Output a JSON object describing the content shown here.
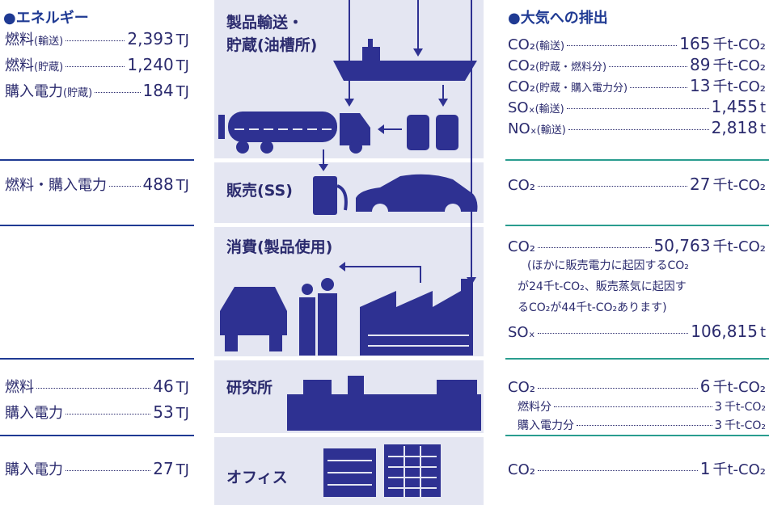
{
  "energy": {
    "title": "●エネルギー"
  },
  "emissions": {
    "title": "●大気への排出"
  },
  "sections": [
    {
      "stage": [
        "製品輸送・",
        "貯蔵(油槽所)"
      ],
      "energy": [
        {
          "label": "燃料",
          "note": "(輸送)",
          "value": "2,393",
          "unit": "TJ"
        },
        {
          "label": "燃料",
          "note": "(貯蔵)",
          "value": "1,240",
          "unit": "TJ"
        },
        {
          "label": "購入電力",
          "note": "(貯蔵)",
          "value": "184",
          "unit": "TJ"
        }
      ],
      "emissions": [
        {
          "label": "CO₂",
          "note": "(輸送)",
          "value": "165",
          "unit": "千t-CO₂"
        },
        {
          "label": "CO₂",
          "note": "(貯蔵・燃料分)",
          "value": "89",
          "unit": "千t-CO₂"
        },
        {
          "label": "CO₂",
          "note": "(貯蔵・購入電力分)",
          "value": "13",
          "unit": "千t-CO₂"
        },
        {
          "label": "SOₓ",
          "note": "(輸送)",
          "value": "1,455",
          "unit": "t"
        },
        {
          "label": "NOₓ",
          "note": "(輸送)",
          "value": "2,818",
          "unit": "t"
        }
      ]
    },
    {
      "stage": [
        "販売(SS)"
      ],
      "energy": [
        {
          "label": "燃料・購入電力",
          "value": "488",
          "unit": "TJ"
        }
      ],
      "emissions": [
        {
          "label": "CO₂",
          "value": "27",
          "unit": "千t-CO₂"
        }
      ]
    },
    {
      "stage": [
        "消費(製品使用)"
      ],
      "energy": [],
      "emissions": [
        {
          "label": "CO₂",
          "value": "50,763",
          "unit": "千t-CO₂"
        },
        {
          "label": "SOₓ",
          "value": "106,815",
          "unit": "t"
        }
      ],
      "memo": [
        "(ほかに販売電力に起因するCO₂",
        "が24千t-CO₂、販売蒸気に起因す",
        "るCO₂が44千t-CO₂あります)"
      ]
    },
    {
      "stage": [
        "研究所"
      ],
      "energy": [
        {
          "label": "燃料",
          "value": "46",
          "unit": "TJ"
        },
        {
          "label": "購入電力",
          "value": "53",
          "unit": "TJ"
        }
      ],
      "emissions": [
        {
          "label": "CO₂",
          "value": "6",
          "unit": "千t-CO₂"
        },
        {
          "label": "燃料分",
          "value": "3",
          "unit": "千t-CO₂"
        },
        {
          "label": "購入電力分",
          "value": "3",
          "unit": "千t-CO₂"
        }
      ]
    },
    {
      "stage": [
        "オフィス"
      ],
      "energy": [
        {
          "label": "購入電力",
          "value": "27",
          "unit": "TJ"
        }
      ],
      "emissions": [
        {
          "label": "CO₂",
          "value": "1",
          "unit": "千t-CO₂"
        }
      ]
    }
  ]
}
